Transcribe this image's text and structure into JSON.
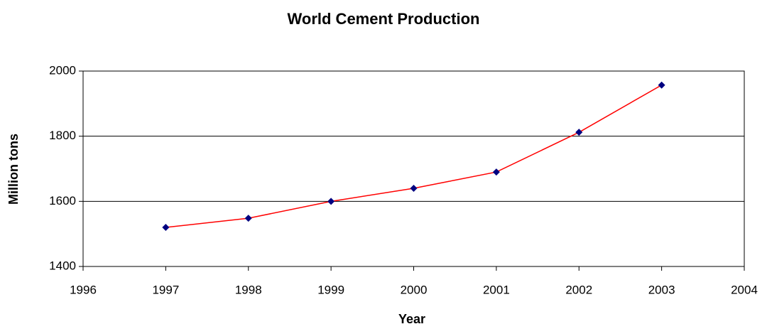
{
  "chart_data": {
    "type": "line",
    "title": "World Cement Production",
    "x_label": "Year",
    "y_label": "Million tons",
    "x": [
      1997,
      1998,
      1999,
      2000,
      2001,
      2002,
      2003
    ],
    "values": [
      1520,
      1548,
      1600,
      1640,
      1690,
      1812,
      1957
    ],
    "color": "#ff0000",
    "marker_color": "#000080",
    "xlim": [
      1996,
      2004
    ],
    "xticks": [
      1996,
      1997,
      1998,
      1999,
      2000,
      2001,
      2002,
      2003,
      2004
    ],
    "ylim": [
      1400,
      2000
    ],
    "yticks": [
      1400,
      1600,
      1800,
      2000
    ],
    "grid": true
  }
}
